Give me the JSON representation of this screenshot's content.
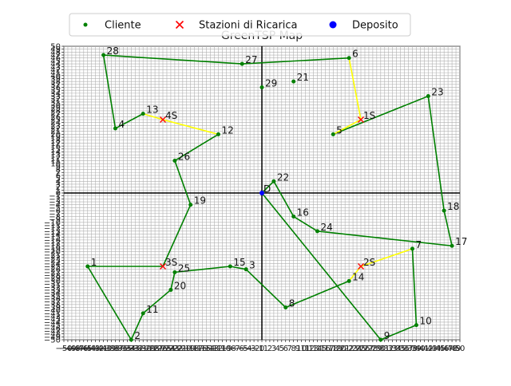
{
  "chart_data": {
    "type": "scatter",
    "title": "GreenTSP Map",
    "xlabel": "",
    "ylabel": "",
    "xlim": [
      -50,
      50
    ],
    "ylim": [
      -50,
      50
    ],
    "grid": true,
    "legend_placement": "top-center",
    "legend": [
      {
        "name": "Cliente",
        "marker": "dot",
        "color": "#008000"
      },
      {
        "name": "Stazioni di Ricarica",
        "marker": "x",
        "color": "#ff0000"
      },
      {
        "name": "Deposito",
        "marker": "circle",
        "color": "#0000ff"
      }
    ],
    "clients": [
      {
        "label": "1",
        "x": -44,
        "y": -25
      },
      {
        "label": "2",
        "x": -33,
        "y": -50
      },
      {
        "label": "3",
        "x": -4,
        "y": -26
      },
      {
        "label": "4",
        "x": -37,
        "y": 22
      },
      {
        "label": "6",
        "x": 22,
        "y": 46
      },
      {
        "label": "8",
        "x": 6,
        "y": -39
      },
      {
        "label": "9",
        "x": 30,
        "y": -50
      },
      {
        "label": "10",
        "x": 39,
        "y": -45
      },
      {
        "label": "11",
        "x": -30,
        "y": -41
      },
      {
        "label": "12",
        "x": -11,
        "y": 20
      },
      {
        "label": "13",
        "x": -30,
        "y": 27
      },
      {
        "label": "14",
        "x": 22,
        "y": -30
      },
      {
        "label": "15",
        "x": -8,
        "y": -25
      },
      {
        "label": "16",
        "x": 8,
        "y": -8
      },
      {
        "label": "17",
        "x": 48,
        "y": -18
      },
      {
        "label": "18",
        "x": 46,
        "y": -6
      },
      {
        "label": "19",
        "x": -18,
        "y": -4
      },
      {
        "label": "20",
        "x": -23,
        "y": -33
      },
      {
        "label": "21",
        "x": 8,
        "y": 38
      },
      {
        "label": "22",
        "x": 3,
        "y": 4
      },
      {
        "label": "23",
        "x": 42,
        "y": 33
      },
      {
        "label": "25",
        "x": -22,
        "y": -27
      },
      {
        "label": "26",
        "x": -22,
        "y": 11
      },
      {
        "label": "27",
        "x": -5,
        "y": 44
      },
      {
        "label": "28",
        "x": -40,
        "y": 47
      },
      {
        "label": "29",
        "x": 0,
        "y": 36
      },
      {
        "label": "5",
        "x": 18,
        "y": 20
      }
    ],
    "stations": [
      {
        "label": "1S",
        "x": 25,
        "y": 25
      },
      {
        "label": "2S",
        "x": 25,
        "y": -25
      },
      {
        "label": "3S",
        "x": -25,
        "y": -25
      },
      {
        "label": "4S",
        "x": -25,
        "y": 25
      }
    ],
    "depot": {
      "label": "D",
      "x": 0,
      "y": 0
    },
    "route": [
      "D",
      "22",
      "16",
      "24",
      "17",
      "18",
      "23",
      "5",
      "1S",
      "6",
      "27",
      "28",
      "4",
      "13",
      "4S",
      "12",
      "26",
      "19",
      "3S",
      "1",
      "2",
      "11",
      "20",
      "25",
      "15",
      "3",
      "8",
      "14",
      "2S",
      "7",
      "10",
      "9",
      "D"
    ],
    "extra_points": [
      {
        "label": "7",
        "x": 38,
        "y": -19
      },
      {
        "label": "24",
        "x": 14,
        "y": -13
      }
    ],
    "yellow_segments": [
      [
        "5",
        "1S"
      ],
      [
        "1S",
        "6"
      ],
      [
        "13",
        "4S"
      ],
      [
        "4S",
        "12"
      ],
      [
        "14",
        "2S"
      ],
      [
        "2S",
        "7"
      ]
    ],
    "colors": {
      "route": "#008000",
      "charging_leg": "#ffff00",
      "client": "#008000",
      "station": "#ff0000",
      "depot": "#0000ff",
      "grid": "#b0b0b0"
    }
  }
}
